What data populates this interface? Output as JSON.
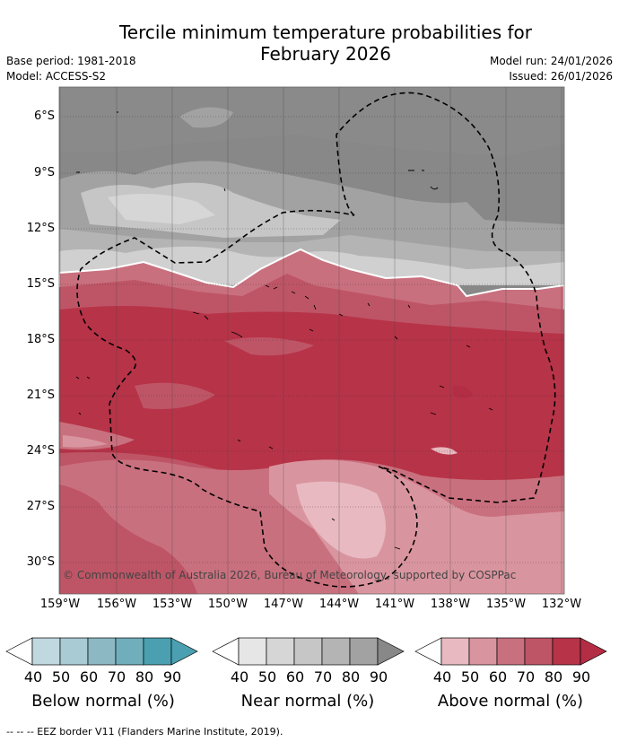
{
  "title_line1": "Tercile minimum temperature probabilities for",
  "title_line2": "February 2026",
  "meta": {
    "base_period": "Base period: 1981-2018",
    "model": "Model: ACCESS-S2",
    "model_run": "Model run: 24/01/2026",
    "issued": "Issued: 26/01/2026"
  },
  "map": {
    "lat_labels": [
      "6°S",
      "9°S",
      "12°S",
      "15°S",
      "18°S",
      "21°S",
      "24°S",
      "27°S",
      "30°S"
    ],
    "lon_labels": [
      "159°W",
      "156°W",
      "153°W",
      "150°W",
      "147°W",
      "144°W",
      "141°W",
      "138°W",
      "135°W",
      "132°W"
    ],
    "copyright": "© Commonwealth of Australia 2026, Bureau of Meteorology, supported by COSPPac"
  },
  "legend": {
    "ticks": [
      "40",
      "50",
      "60",
      "70",
      "80",
      "90"
    ],
    "below": {
      "title": "Below normal (%)",
      "colors": [
        "#ffffff",
        "#c0d8df",
        "#a8cbd4",
        "#8cb8c4",
        "#70aebc",
        "#4aa0b0"
      ]
    },
    "near": {
      "title": "Near normal (%)",
      "colors": [
        "#ffffff",
        "#e6e6e6",
        "#d6d6d6",
        "#c6c6c6",
        "#b4b4b4",
        "#a2a2a2",
        "#888888"
      ]
    },
    "above": {
      "title": "Above normal (%)",
      "colors": [
        "#ffffff",
        "#e8b9c0",
        "#d9959f",
        "#c9707e",
        "#be5566",
        "#b73348",
        "#b32d44"
      ]
    }
  },
  "footer": "--  --  -- EEZ border V11 (Flanders Marine Institute, 2019)."
}
